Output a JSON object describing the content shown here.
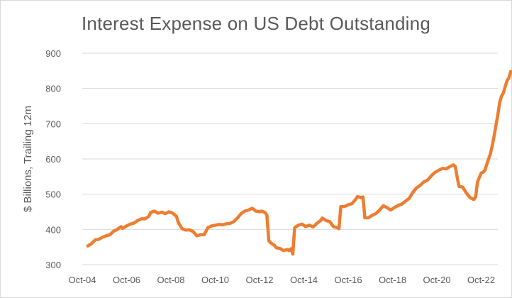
{
  "chart_data": {
    "type": "line",
    "title": "Interest Expense on US Debt Outstanding",
    "ylabel": "$ Billions, Trailing 12m",
    "xlabel": "",
    "ylim": [
      300,
      900
    ],
    "yticks": [
      300,
      400,
      500,
      600,
      700,
      800,
      900
    ],
    "xlim": [
      "2004-10",
      "2023-07"
    ],
    "xticks": [
      "Oct-04",
      "Oct-06",
      "Oct-08",
      "Oct-10",
      "Oct-12",
      "Oct-14",
      "Oct-16",
      "Oct-18",
      "Oct-20",
      "Oct-22"
    ],
    "grid": true,
    "legend": "none",
    "line_color": "#ED7D31",
    "series": [
      {
        "points": [
          [
            "2005-01",
            353
          ],
          [
            "2005-03",
            360
          ],
          [
            "2005-05",
            370
          ],
          [
            "2005-07",
            372
          ],
          [
            "2005-09",
            378
          ],
          [
            "2005-11",
            382
          ],
          [
            "2006-01",
            385
          ],
          [
            "2006-03",
            395
          ],
          [
            "2006-05",
            400
          ],
          [
            "2006-07",
            408
          ],
          [
            "2006-08",
            403
          ],
          [
            "2006-10",
            410
          ],
          [
            "2006-12",
            415
          ],
          [
            "2007-02",
            418
          ],
          [
            "2007-04",
            425
          ],
          [
            "2007-06",
            430
          ],
          [
            "2007-08",
            430
          ],
          [
            "2007-10",
            437
          ],
          [
            "2007-11",
            448
          ],
          [
            "2008-01",
            452
          ],
          [
            "2008-03",
            446
          ],
          [
            "2008-05",
            449
          ],
          [
            "2008-07",
            445
          ],
          [
            "2008-09",
            450
          ],
          [
            "2008-11",
            446
          ],
          [
            "2009-01",
            437
          ],
          [
            "2009-02",
            420
          ],
          [
            "2009-04",
            402
          ],
          [
            "2009-06",
            398
          ],
          [
            "2009-08",
            399
          ],
          [
            "2009-10",
            394
          ],
          [
            "2009-12",
            382
          ],
          [
            "2010-02",
            385
          ],
          [
            "2010-04",
            385
          ],
          [
            "2010-06",
            405
          ],
          [
            "2010-08",
            410
          ],
          [
            "2010-10",
            412
          ],
          [
            "2010-12",
            414
          ],
          [
            "2011-02",
            413
          ],
          [
            "2011-04",
            416
          ],
          [
            "2011-06",
            417
          ],
          [
            "2011-08",
            422
          ],
          [
            "2011-10",
            432
          ],
          [
            "2011-12",
            445
          ],
          [
            "2012-02",
            452
          ],
          [
            "2012-04",
            455
          ],
          [
            "2012-06",
            460
          ],
          [
            "2012-08",
            452
          ],
          [
            "2012-10",
            450
          ],
          [
            "2012-11",
            452
          ],
          [
            "2013-01",
            448
          ],
          [
            "2013-02",
            440
          ],
          [
            "2013-03",
            368
          ],
          [
            "2013-04",
            362
          ],
          [
            "2013-06",
            355
          ],
          [
            "2013-07",
            348
          ],
          [
            "2013-09",
            346
          ],
          [
            "2013-11",
            340
          ],
          [
            "2014-01",
            343
          ],
          [
            "2014-02",
            340
          ],
          [
            "2014-03",
            345
          ],
          [
            "2014-04",
            330
          ],
          [
            "2014-05",
            405
          ],
          [
            "2014-07",
            412
          ],
          [
            "2014-09",
            415
          ],
          [
            "2014-11",
            408
          ],
          [
            "2015-01",
            412
          ],
          [
            "2015-03",
            407
          ],
          [
            "2015-05",
            417
          ],
          [
            "2015-07",
            425
          ],
          [
            "2015-08",
            432
          ],
          [
            "2015-10",
            425
          ],
          [
            "2015-12",
            422
          ],
          [
            "2016-02",
            408
          ],
          [
            "2016-04",
            405
          ],
          [
            "2016-05",
            402
          ],
          [
            "2016-06",
            465
          ],
          [
            "2016-08",
            465
          ],
          [
            "2016-10",
            470
          ],
          [
            "2016-12",
            473
          ],
          [
            "2017-02",
            485
          ],
          [
            "2017-03",
            493
          ],
          [
            "2017-05",
            490
          ],
          [
            "2017-06",
            492
          ],
          [
            "2017-07",
            433
          ],
          [
            "2017-09",
            433
          ],
          [
            "2017-11",
            440
          ],
          [
            "2018-01",
            445
          ],
          [
            "2018-03",
            455
          ],
          [
            "2018-05",
            467
          ],
          [
            "2018-07",
            462
          ],
          [
            "2018-09",
            455
          ],
          [
            "2018-11",
            462
          ],
          [
            "2019-01",
            468
          ],
          [
            "2019-03",
            472
          ],
          [
            "2019-05",
            480
          ],
          [
            "2019-07",
            488
          ],
          [
            "2019-09",
            505
          ],
          [
            "2019-11",
            518
          ],
          [
            "2020-01",
            525
          ],
          [
            "2020-03",
            535
          ],
          [
            "2020-05",
            540
          ],
          [
            "2020-07",
            552
          ],
          [
            "2020-09",
            562
          ],
          [
            "2020-11",
            568
          ],
          [
            "2021-01",
            573
          ],
          [
            "2021-03",
            572
          ],
          [
            "2021-05",
            578
          ],
          [
            "2021-07",
            583
          ],
          [
            "2021-08",
            578
          ],
          [
            "2021-09",
            548
          ],
          [
            "2021-10",
            522
          ],
          [
            "2021-12",
            520
          ],
          [
            "2022-02",
            503
          ],
          [
            "2022-04",
            490
          ],
          [
            "2022-06",
            485
          ],
          [
            "2022-07",
            492
          ],
          [
            "2022-08",
            535
          ],
          [
            "2022-09",
            548
          ],
          [
            "2022-10",
            560
          ],
          [
            "2022-11",
            562
          ],
          [
            "2022-12",
            568
          ],
          [
            "2023-01",
            585
          ],
          [
            "2023-02",
            600
          ],
          [
            "2023-03",
            615
          ],
          [
            "2023-04",
            638
          ],
          [
            "2023-05",
            665
          ],
          [
            "2023-06",
            695
          ],
          [
            "2023-07",
            725
          ],
          [
            "2023-08",
            760
          ],
          [
            "2023-09",
            778
          ],
          [
            "2023-10",
            787
          ],
          [
            "2023-11",
            805
          ],
          [
            "2023-12",
            822
          ],
          [
            "2024-01",
            830
          ],
          [
            "2024-02",
            848
          ]
        ]
      }
    ]
  }
}
